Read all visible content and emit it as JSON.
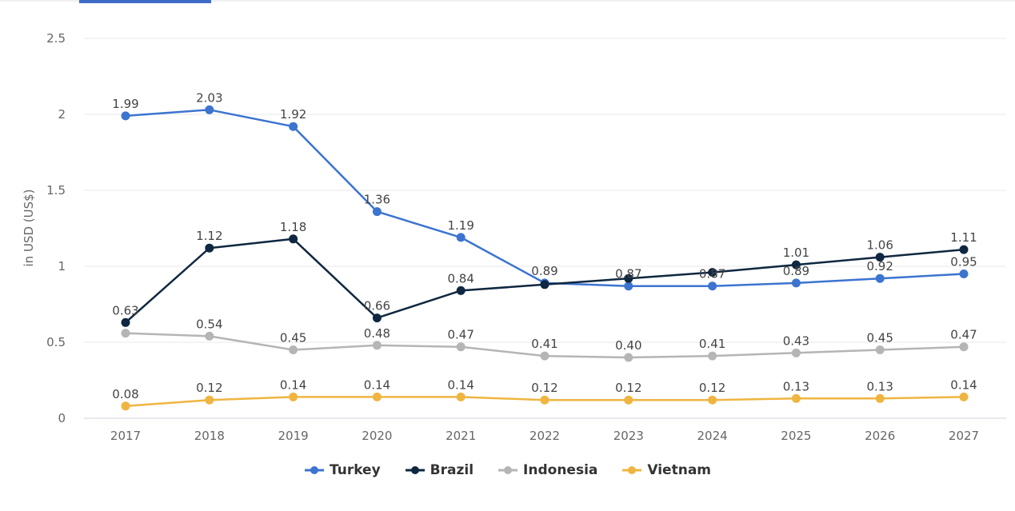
{
  "ui": {
    "active_tab_indicator": true
  },
  "chart_data": {
    "type": "line",
    "title": "",
    "xlabel": "",
    "ylabel": "in USD (US$)",
    "x": [
      "2017",
      "2018",
      "2019",
      "2020",
      "2021",
      "2022",
      "2023",
      "2024",
      "2025",
      "2026",
      "2027"
    ],
    "ylim": [
      0,
      2.5
    ],
    "yticks": [
      0,
      0.5,
      1,
      1.5,
      2,
      2.5
    ],
    "ytick_labels": [
      "0",
      "0.5",
      "1",
      "1.5",
      "2",
      "2.5"
    ],
    "grid": true,
    "legend_position": "bottom-center",
    "series": [
      {
        "name": "Turkey",
        "color": "#3c74d0",
        "values": [
          1.99,
          2.03,
          1.92,
          1.36,
          1.19,
          0.89,
          0.87,
          0.87,
          0.89,
          0.92,
          0.95
        ],
        "labels": [
          "1.99",
          "2.03",
          "1.92",
          "1.36",
          "1.19",
          "0.89",
          "0.87",
          "0.87",
          "0.89",
          "0.92",
          "0.95"
        ]
      },
      {
        "name": "Brazil",
        "color": "#0f2740",
        "values": [
          0.63,
          1.12,
          1.18,
          0.66,
          0.84,
          0.88,
          0.92,
          0.96,
          1.01,
          1.06,
          1.11
        ],
        "labels": [
          "0.63",
          "1.12",
          "1.18",
          "0.66",
          "0.84",
          "",
          "",
          "",
          "1.01",
          "1.06",
          "1.11"
        ]
      },
      {
        "name": "Indonesia",
        "color": "#b5b5b5",
        "values": [
          0.56,
          0.54,
          0.45,
          0.48,
          0.47,
          0.41,
          0.4,
          0.41,
          0.43,
          0.45,
          0.47
        ],
        "labels": [
          "",
          "0.54",
          "0.45",
          "0.48",
          "0.47",
          "0.41",
          "0.40",
          "0.41",
          "0.43",
          "0.45",
          "0.47"
        ]
      },
      {
        "name": "Vietnam",
        "color": "#efb540",
        "values": [
          0.08,
          0.12,
          0.14,
          0.14,
          0.14,
          0.12,
          0.12,
          0.12,
          0.13,
          0.13,
          0.14
        ],
        "labels": [
          "0.08",
          "0.12",
          "0.14",
          "0.14",
          "0.14",
          "0.12",
          "0.12",
          "0.12",
          "0.13",
          "0.13",
          "0.14"
        ]
      }
    ]
  }
}
